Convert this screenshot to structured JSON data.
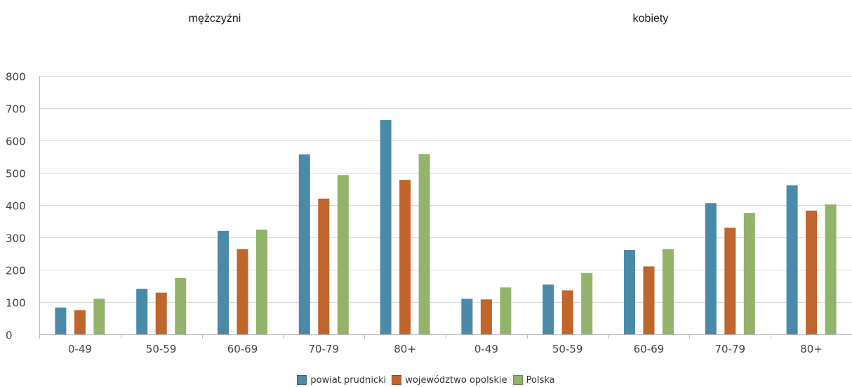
{
  "chart_data": {
    "type": "bar",
    "groups": [
      "mężczyźni",
      "kobiety"
    ],
    "categories": [
      "0-49",
      "50-59",
      "60-69",
      "70-79",
      "80+",
      "0-49",
      "50-59",
      "60-69",
      "70-79",
      "80+"
    ],
    "series": [
      {
        "name": "powiat prudnicki",
        "color": "#4a8aa8",
        "values": [
          83,
          141,
          320,
          557,
          663,
          110,
          154,
          261,
          406,
          461
        ]
      },
      {
        "name": "województwo opolskie",
        "color": "#c0652b",
        "values": [
          75,
          129,
          264,
          420,
          478,
          108,
          136,
          210,
          330,
          383
        ]
      },
      {
        "name": "Polska",
        "color": "#93b36a",
        "values": [
          110,
          174,
          324,
          493,
          558,
          145,
          190,
          264,
          376,
          402
        ]
      }
    ],
    "yticks": [
      0,
      100,
      200,
      300,
      400,
      500,
      600,
      700,
      800
    ],
    "ylim": [
      0,
      800
    ],
    "grid": true,
    "legend": "bottom-center"
  }
}
